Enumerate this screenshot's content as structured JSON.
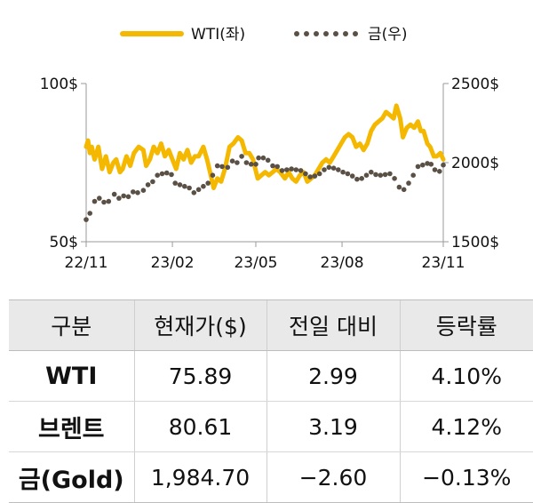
{
  "chart_data": {
    "type": "line",
    "x_ticks": [
      "22/11",
      "23/02",
      "23/05",
      "23/08",
      "23/11"
    ],
    "y_left": {
      "ticks": [
        "100$",
        "50$"
      ],
      "range": [
        50,
        100
      ]
    },
    "y_right": {
      "ticks": [
        "2500$",
        "2000$",
        "1500$"
      ],
      "range": [
        1500,
        2500
      ]
    },
    "series": [
      {
        "name": "WTI(좌)",
        "axis": "left",
        "style": "solid",
        "color": "#f5b800",
        "points": [
          [
            "2022-11-01",
            80
          ],
          [
            "2022-11-03",
            82
          ],
          [
            "2022-11-05",
            78
          ],
          [
            "2022-11-07",
            80
          ],
          [
            "2022-11-10",
            76
          ],
          [
            "2022-11-14",
            80
          ],
          [
            "2022-11-18",
            73
          ],
          [
            "2022-11-22",
            77
          ],
          [
            "2022-11-26",
            72
          ],
          [
            "2022-11-30",
            75
          ],
          [
            "2022-12-03",
            76
          ],
          [
            "2022-12-07",
            72
          ],
          [
            "2022-12-10",
            73
          ],
          [
            "2022-12-14",
            77
          ],
          [
            "2022-12-18",
            74
          ],
          [
            "2022-12-22",
            78
          ],
          [
            "2022-12-27",
            80
          ],
          [
            "2023-01-01",
            79
          ],
          [
            "2023-01-04",
            74
          ],
          [
            "2023-01-08",
            76
          ],
          [
            "2023-01-12",
            80
          ],
          [
            "2023-01-16",
            78
          ],
          [
            "2023-01-20",
            81
          ],
          [
            "2023-01-24",
            77
          ],
          [
            "2023-01-28",
            79
          ],
          [
            "2023-02-01",
            76
          ],
          [
            "2023-02-05",
            73
          ],
          [
            "2023-02-09",
            78
          ],
          [
            "2023-02-13",
            76
          ],
          [
            "2023-02-17",
            79
          ],
          [
            "2023-02-21",
            75
          ],
          [
            "2023-02-25",
            77
          ],
          [
            "2023-03-01",
            77
          ],
          [
            "2023-03-06",
            80
          ],
          [
            "2023-03-10",
            76
          ],
          [
            "2023-03-14",
            71
          ],
          [
            "2023-03-17",
            67
          ],
          [
            "2023-03-21",
            70
          ],
          [
            "2023-03-25",
            69
          ],
          [
            "2023-03-29",
            73
          ],
          [
            "2023-04-03",
            80
          ],
          [
            "2023-04-07",
            81
          ],
          [
            "2023-04-12",
            83
          ],
          [
            "2023-04-16",
            82
          ],
          [
            "2023-04-20",
            78
          ],
          [
            "2023-04-24",
            78
          ],
          [
            "2023-04-28",
            76
          ],
          [
            "2023-05-03",
            70
          ],
          [
            "2023-05-07",
            71
          ],
          [
            "2023-05-11",
            72
          ],
          [
            "2023-05-15",
            71
          ],
          [
            "2023-05-19",
            72
          ],
          [
            "2023-05-23",
            73
          ],
          [
            "2023-05-27",
            72
          ],
          [
            "2023-06-01",
            70
          ],
          [
            "2023-06-05",
            72
          ],
          [
            "2023-06-09",
            70
          ],
          [
            "2023-06-13",
            69
          ],
          [
            "2023-06-17",
            71
          ],
          [
            "2023-06-21",
            72
          ],
          [
            "2023-06-25",
            69
          ],
          [
            "2023-06-29",
            70
          ],
          [
            "2023-07-03",
            71
          ],
          [
            "2023-07-07",
            73
          ],
          [
            "2023-07-11",
            75
          ],
          [
            "2023-07-15",
            76
          ],
          [
            "2023-07-19",
            75
          ],
          [
            "2023-07-23",
            77
          ],
          [
            "2023-07-27",
            79
          ],
          [
            "2023-07-31",
            81
          ],
          [
            "2023-08-04",
            83
          ],
          [
            "2023-08-08",
            84
          ],
          [
            "2023-08-12",
            83
          ],
          [
            "2023-08-16",
            80
          ],
          [
            "2023-08-20",
            81
          ],
          [
            "2023-08-24",
            79
          ],
          [
            "2023-08-28",
            81
          ],
          [
            "2023-09-01",
            85
          ],
          [
            "2023-09-05",
            87
          ],
          [
            "2023-09-09",
            88
          ],
          [
            "2023-09-13",
            89
          ],
          [
            "2023-09-17",
            91
          ],
          [
            "2023-09-21",
            90
          ],
          [
            "2023-09-25",
            89
          ],
          [
            "2023-09-28",
            93
          ],
          [
            "2023-10-02",
            89
          ],
          [
            "2023-10-05",
            83
          ],
          [
            "2023-10-09",
            86
          ],
          [
            "2023-10-13",
            87
          ],
          [
            "2023-10-17",
            86
          ],
          [
            "2023-10-21",
            88
          ],
          [
            "2023-10-24",
            85
          ],
          [
            "2023-10-27",
            85
          ],
          [
            "2023-10-31",
            81
          ],
          [
            "2023-11-03",
            80
          ],
          [
            "2023-11-07",
            77
          ],
          [
            "2023-11-10",
            77
          ],
          [
            "2023-11-14",
            78
          ],
          [
            "2023-11-17",
            76
          ]
        ]
      },
      {
        "name": "금(우)",
        "axis": "right",
        "style": "dotted",
        "color": "#5a5045",
        "points": [
          [
            "2022-11-01",
            1640
          ],
          [
            "2022-11-05",
            1680
          ],
          [
            "2022-11-10",
            1755
          ],
          [
            "2022-11-15",
            1775
          ],
          [
            "2022-11-20",
            1750
          ],
          [
            "2022-11-25",
            1755
          ],
          [
            "2022-12-01",
            1800
          ],
          [
            "2022-12-06",
            1775
          ],
          [
            "2022-12-11",
            1790
          ],
          [
            "2022-12-16",
            1785
          ],
          [
            "2022-12-21",
            1815
          ],
          [
            "2022-12-26",
            1810
          ],
          [
            "2023-01-01",
            1825
          ],
          [
            "2023-01-06",
            1860
          ],
          [
            "2023-01-11",
            1880
          ],
          [
            "2023-01-16",
            1920
          ],
          [
            "2023-01-21",
            1930
          ],
          [
            "2023-01-26",
            1935
          ],
          [
            "2023-01-31",
            1925
          ],
          [
            "2023-02-04",
            1870
          ],
          [
            "2023-02-09",
            1860
          ],
          [
            "2023-02-14",
            1850
          ],
          [
            "2023-02-19",
            1840
          ],
          [
            "2023-02-24",
            1810
          ],
          [
            "2023-03-01",
            1830
          ],
          [
            "2023-03-06",
            1850
          ],
          [
            "2023-03-11",
            1870
          ],
          [
            "2023-03-16",
            1920
          ],
          [
            "2023-03-21",
            1980
          ],
          [
            "2023-03-26",
            1975
          ],
          [
            "2023-04-01",
            1970
          ],
          [
            "2023-04-06",
            2010
          ],
          [
            "2023-04-11",
            2000
          ],
          [
            "2023-04-16",
            2040
          ],
          [
            "2023-04-21",
            2000
          ],
          [
            "2023-04-26",
            1990
          ],
          [
            "2023-05-01",
            1990
          ],
          [
            "2023-05-04",
            2030
          ],
          [
            "2023-05-09",
            2030
          ],
          [
            "2023-05-14",
            2015
          ],
          [
            "2023-05-19",
            1980
          ],
          [
            "2023-05-24",
            1975
          ],
          [
            "2023-05-29",
            1950
          ],
          [
            "2023-06-03",
            1955
          ],
          [
            "2023-06-08",
            1960
          ],
          [
            "2023-06-13",
            1955
          ],
          [
            "2023-06-18",
            1950
          ],
          [
            "2023-06-23",
            1930
          ],
          [
            "2023-06-28",
            1910
          ],
          [
            "2023-07-03",
            1915
          ],
          [
            "2023-07-08",
            1930
          ],
          [
            "2023-07-13",
            1955
          ],
          [
            "2023-07-18",
            1970
          ],
          [
            "2023-07-23",
            1965
          ],
          [
            "2023-07-28",
            1955
          ],
          [
            "2023-08-02",
            1940
          ],
          [
            "2023-08-07",
            1930
          ],
          [
            "2023-08-12",
            1915
          ],
          [
            "2023-08-17",
            1895
          ],
          [
            "2023-08-22",
            1900
          ],
          [
            "2023-08-27",
            1920
          ],
          [
            "2023-09-01",
            1940
          ],
          [
            "2023-09-06",
            1925
          ],
          [
            "2023-09-11",
            1920
          ],
          [
            "2023-09-16",
            1925
          ],
          [
            "2023-09-21",
            1930
          ],
          [
            "2023-09-26",
            1900
          ],
          [
            "2023-10-01",
            1845
          ],
          [
            "2023-10-06",
            1830
          ],
          [
            "2023-10-11",
            1870
          ],
          [
            "2023-10-16",
            1920
          ],
          [
            "2023-10-21",
            1975
          ],
          [
            "2023-10-26",
            1985
          ],
          [
            "2023-10-31",
            1995
          ],
          [
            "2023-11-04",
            1990
          ],
          [
            "2023-11-08",
            1955
          ],
          [
            "2023-11-13",
            1945
          ],
          [
            "2023-11-17",
            1985
          ]
        ]
      }
    ]
  },
  "table": {
    "headers": [
      "구분",
      "현재가($)",
      "전일 대비",
      "등락률"
    ],
    "rows": [
      [
        "WTI",
        "75.89",
        "2.99",
        "4.10%"
      ],
      [
        "브렌트",
        "80.61",
        "3.19",
        "4.12%"
      ],
      [
        "금(Gold)",
        "1,984.70",
        "−2.60",
        "−0.13%"
      ]
    ]
  }
}
